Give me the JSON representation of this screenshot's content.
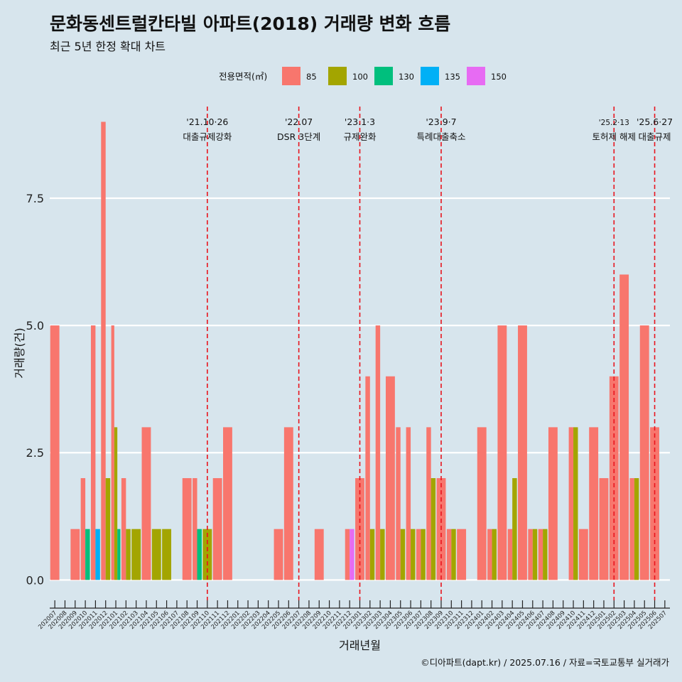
{
  "title": "문화동센트럴칸타빌 아파트(2018) 거래량 변화 흐름",
  "subtitle": "최근 5년 한정 확대 차트",
  "caption": "©디아파트(dapt.kr) / 2025.07.16 / 자료=국토교통부 실거래가",
  "colors": {
    "background": "#d7e5ed",
    "grid": "#ffffff",
    "event_line": "#e8141d",
    "axis": "#222222"
  },
  "chart_data": {
    "type": "bar",
    "stacked": false,
    "xlabel": "거래년월",
    "ylabel": "거래량(건)",
    "ylim": [
      -0.4,
      9.3
    ],
    "yticks": [
      0.0,
      2.5,
      5.0,
      7.5
    ],
    "ytick_labels": [
      "0.0",
      "2.5",
      "5.0",
      "7.5"
    ],
    "legend": {
      "title": "전용면적(㎡)",
      "position": "top",
      "entries": [
        {
          "name": "85",
          "color": "#f8766d"
        },
        {
          "name": "100",
          "color": "#a3a500"
        },
        {
          "name": "130",
          "color": "#00bf7d"
        },
        {
          "name": "135",
          "color": "#00b0f6"
        },
        {
          "name": "150",
          "color": "#e76bf3"
        }
      ]
    },
    "categories": [
      "202007",
      "202008",
      "202009",
      "202010",
      "202011",
      "202012",
      "202101",
      "202102",
      "202103",
      "202104",
      "202105",
      "202106",
      "202107",
      "202108",
      "202109",
      "202110",
      "202111",
      "202112",
      "202201",
      "202202",
      "202203",
      "202204",
      "202205",
      "202206",
      "202207",
      "202208",
      "202209",
      "202210",
      "202211",
      "202212",
      "202301",
      "202302",
      "202303",
      "202304",
      "202305",
      "202306",
      "202307",
      "202308",
      "202309",
      "202310",
      "202311",
      "202312",
      "202401",
      "202402",
      "202403",
      "202404",
      "202405",
      "202406",
      "202407",
      "202408",
      "202409",
      "202410",
      "202411",
      "202412",
      "202501",
      "202502",
      "202503",
      "202504",
      "202505",
      "202506",
      "202507"
    ],
    "series": [
      {
        "name": "85",
        "values": [
          5,
          0,
          1,
          2,
          5,
          9,
          5,
          2,
          0,
          3,
          0,
          0,
          0,
          2,
          2,
          0,
          2,
          3,
          0,
          0,
          0,
          0,
          1,
          3,
          0,
          0,
          1,
          0,
          0,
          1,
          2,
          4,
          5,
          4,
          3,
          3,
          1,
          3,
          2,
          1,
          1,
          0,
          3,
          1,
          5,
          1,
          5,
          1,
          1,
          3,
          0,
          3,
          1,
          3,
          2,
          4,
          6,
          2,
          5,
          3,
          0
        ]
      },
      {
        "name": "100",
        "values": [
          0,
          0,
          0,
          0,
          0,
          2,
          3,
          1,
          1,
          0,
          1,
          1,
          0,
          0,
          0,
          1,
          0,
          0,
          0,
          0,
          0,
          0,
          0,
          0,
          0,
          0,
          0,
          0,
          0,
          0,
          0,
          1,
          1,
          0,
          1,
          1,
          1,
          2,
          0,
          1,
          0,
          0,
          0,
          1,
          0,
          2,
          0,
          1,
          1,
          0,
          0,
          3,
          0,
          0,
          0,
          0,
          0,
          2,
          0,
          0,
          0
        ]
      },
      {
        "name": "130",
        "values": [
          0,
          0,
          0,
          1,
          0,
          0,
          1,
          0,
          0,
          0,
          0,
          0,
          0,
          0,
          1,
          0,
          0,
          0,
          0,
          0,
          0,
          0,
          0,
          0,
          0,
          0,
          0,
          0,
          0,
          0,
          0,
          0,
          0,
          0,
          0,
          0,
          0,
          0,
          0,
          0,
          0,
          0,
          0,
          0,
          0,
          0,
          0,
          0,
          0,
          0,
          0,
          0,
          0,
          0,
          0,
          0,
          0,
          0,
          0,
          0,
          0
        ]
      },
      {
        "name": "135",
        "values": [
          0,
          0,
          0,
          0,
          1,
          0,
          0,
          0,
          0,
          0,
          0,
          0,
          0,
          0,
          0,
          0,
          0,
          0,
          0,
          0,
          0,
          0,
          0,
          0,
          0,
          0,
          0,
          0,
          0,
          0,
          0,
          0,
          0,
          0,
          0,
          0,
          0,
          0,
          0,
          0,
          0,
          0,
          0,
          0,
          0,
          0,
          0,
          0,
          0,
          0,
          0,
          0,
          0,
          0,
          0,
          0,
          0,
          0,
          0,
          0,
          0
        ]
      },
      {
        "name": "150",
        "values": [
          0,
          0,
          0,
          0,
          0,
          0,
          0,
          0,
          0,
          0,
          0,
          0,
          0,
          0,
          0,
          0,
          0,
          0,
          0,
          0,
          0,
          0,
          0,
          0,
          0,
          0,
          0,
          0,
          0,
          1,
          0,
          0,
          0,
          0,
          0,
          0,
          0,
          0,
          0,
          0,
          0,
          0,
          0,
          0,
          0,
          0,
          0,
          0,
          0,
          0,
          0,
          0,
          0,
          0,
          0,
          0,
          0,
          0,
          0,
          0,
          0
        ]
      }
    ],
    "events": [
      {
        "x": 15.5,
        "date": "'21.10·26",
        "label": "대출규제강화",
        "small": false
      },
      {
        "x": 24.5,
        "date": "'22.07",
        "label": "DSR 3단계",
        "small": false
      },
      {
        "x": 30.5,
        "date": "'23.1·3",
        "label": "규제완화",
        "small": false
      },
      {
        "x": 38.5,
        "date": "'23.9·7",
        "label": "특례대출축소",
        "small": false
      },
      {
        "x": 55.5,
        "date": "'25.2·13",
        "label": "토허제 해제",
        "small": true
      },
      {
        "x": 59.5,
        "date": "'25.6·27",
        "label": "대출규제",
        "small": false
      }
    ]
  }
}
